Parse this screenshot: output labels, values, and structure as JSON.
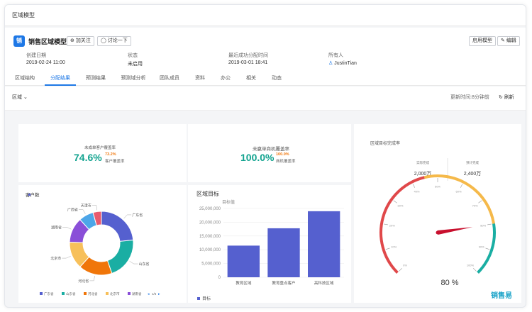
{
  "topbar": {
    "title": "区域模型"
  },
  "header": {
    "title": "销售区域模型",
    "follow_label": "加关注",
    "discuss_label": "讨论一下",
    "enable_label": "启用模型",
    "edit_label": "编辑",
    "fields": [
      {
        "label": "创建日期",
        "value": "2019-02-24 11:00"
      },
      {
        "label": "状态",
        "value": "未启用"
      },
      {
        "label": "最近成功分配时间",
        "value": "2019-03-01 18:41"
      },
      {
        "label": "所有人",
        "value": "JustinTian"
      }
    ]
  },
  "tabs": [
    "区域结构",
    "分配结果",
    "预测结果",
    "预测域分析",
    "团队成员",
    "资料",
    "办公",
    "相关",
    "动态"
  ],
  "active_tab": "分配结果",
  "toolbar": {
    "filter_label": "区域",
    "updated_text": "更新时间:8分钟前",
    "refresh_label": "刷新"
  },
  "kpi1": {
    "caption": "未成单客户覆盖率",
    "value": "74.6%",
    "sub_value": "73.2%",
    "sub_label": "客户覆盖率"
  },
  "kpi2": {
    "caption": "未赢单商机覆盖率",
    "value": "100.0%",
    "sub_value": "100.0%",
    "sub_label": "商机覆盖率"
  },
  "colors": {
    "accent": "#1e78e6",
    "teal": "#12a38f",
    "orange": "#f0760a",
    "bar": "#5560cf",
    "gauge_red": "#e0484a",
    "gauge_yellow": "#f5b94a",
    "gauge_teal": "#1aaea3"
  },
  "pie": {
    "title": "客户数",
    "legend_more": "1/6",
    "chart_data": {
      "type": "pie",
      "slices": [
        {
          "name": "广东省",
          "value": 22,
          "color": "#5560cf"
        },
        {
          "name": "山东省",
          "value": 20,
          "color": "#1aaea3"
        },
        {
          "name": "河北省",
          "value": 16,
          "color": "#f0760a"
        },
        {
          "name": "北京市",
          "value": 13,
          "color": "#f7c05a"
        },
        {
          "name": "湖南省",
          "value": 12,
          "color": "#8a4fd8"
        },
        {
          "name": "广西省",
          "value": 7,
          "color": "#4da6e8"
        },
        {
          "name": "天津市",
          "value": 4,
          "color": "#e85a6e"
        }
      ]
    }
  },
  "bar": {
    "title": "区域目标",
    "legend": "目标",
    "chart_data": {
      "type": "bar",
      "title": "区域目标",
      "ylabel": "目标值",
      "categories": [
        "教育区域",
        "教育重点客户",
        "高科技区域"
      ],
      "values": [
        11500000,
        17800000,
        24000000
      ],
      "ylim": [
        0,
        25000000
      ],
      "yticks": [
        "25,000,000",
        "20,000,000",
        "15,000,000",
        "10,000,000",
        "5,000,000",
        "0"
      ]
    }
  },
  "gauge": {
    "title": "区域目标完成率",
    "left_label": "实际完成",
    "left_value": "2,000万",
    "right_label": "预计完成",
    "right_value": "2,400万",
    "percent_label": "80 %",
    "brand": "销售易",
    "chart_data": {
      "type": "gauge",
      "value": 80,
      "min": 0,
      "max": 100,
      "tick_labels": [
        "0%",
        "10%",
        "20%",
        "30%",
        "40%",
        "50%",
        "60%",
        "70%",
        "80%",
        "90%",
        "100%"
      ]
    }
  }
}
